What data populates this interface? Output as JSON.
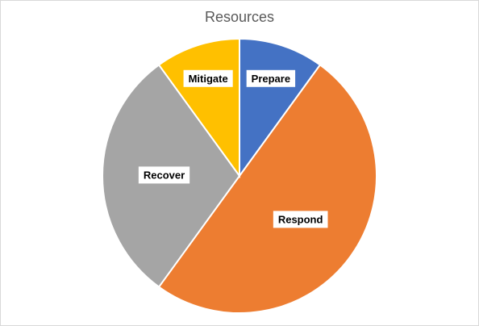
{
  "chart_data": {
    "type": "pie",
    "title": "Resources",
    "categories": [
      "Prepare",
      "Respond",
      "Recover",
      "Mitigate"
    ],
    "values": [
      10,
      50,
      30,
      10
    ],
    "colors": [
      "#4472c4",
      "#ed7d31",
      "#a5a5a5",
      "#ffc000"
    ]
  }
}
